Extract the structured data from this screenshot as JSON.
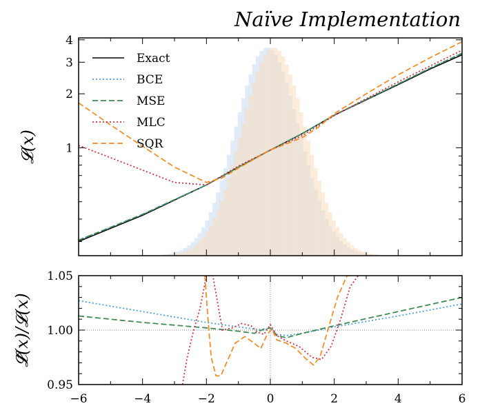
{
  "title": "Naïve Implementation",
  "chart_data": [
    {
      "type": "line",
      "ylabel": "𝓛(x)",
      "xlim": [
        -6,
        6
      ],
      "ylim": [
        0.25,
        4.1
      ],
      "yscale": "log",
      "yticks": [
        "1",
        "2",
        "3",
        "4"
      ],
      "legend": "top-left",
      "series": [
        {
          "name": "Exact",
          "color": "#000000",
          "style": "solid",
          "x": [
            -6,
            -4,
            -2,
            -1,
            0,
            1,
            2,
            3,
            4,
            5,
            6
          ],
          "y": [
            0.3,
            0.42,
            0.62,
            0.78,
            0.97,
            1.2,
            1.52,
            1.85,
            2.25,
            2.75,
            3.3
          ]
        },
        {
          "name": "BCE",
          "color": "#4a9ee0",
          "style": "dotted",
          "x": [
            -6,
            -4,
            -2,
            -1,
            0,
            1,
            2,
            3,
            4,
            5,
            6
          ],
          "y": [
            0.305,
            0.425,
            0.62,
            0.78,
            0.97,
            1.2,
            1.52,
            1.86,
            2.27,
            2.78,
            3.38
          ]
        },
        {
          "name": "MSE",
          "color": "#3f8a52",
          "style": "dashed",
          "x": [
            -6,
            -4,
            -2,
            -1,
            0,
            1,
            2,
            3,
            4,
            5,
            6
          ],
          "y": [
            0.305,
            0.425,
            0.62,
            0.78,
            0.97,
            1.2,
            1.52,
            1.86,
            2.27,
            2.78,
            3.36
          ]
        },
        {
          "name": "MLC",
          "color": "#d0313c",
          "style": "dotted",
          "x": [
            -6,
            -5,
            -4,
            -3,
            -2,
            -1,
            0,
            1,
            2,
            3,
            4,
            5,
            6
          ],
          "y": [
            1.03,
            0.88,
            0.75,
            0.64,
            0.62,
            0.79,
            0.97,
            1.17,
            1.51,
            1.88,
            2.33,
            2.86,
            3.5
          ]
        },
        {
          "name": "SQR",
          "color": "#f28e2b",
          "style": "dashed",
          "x": [
            -6,
            -5,
            -4,
            -3,
            -2,
            -1.5,
            -1,
            0,
            1,
            1.5,
            2,
            3,
            4,
            5,
            6
          ],
          "y": [
            1.78,
            1.34,
            1.02,
            0.78,
            0.64,
            0.68,
            0.77,
            0.97,
            1.14,
            1.3,
            1.55,
            2.0,
            2.55,
            3.18,
            3.9
          ]
        }
      ],
      "histograms": [
        {
          "color": "#c9ddf2",
          "mean": -0.1,
          "sigma": 1.0
        },
        {
          "color": "#f8dcc0",
          "mean": 0.1,
          "sigma": 1.0
        }
      ]
    },
    {
      "type": "line",
      "ylabel": "𝓛̂(x)/𝓛(x)",
      "xlabel": "",
      "xlim": [
        -6,
        6
      ],
      "ylim": [
        0.95,
        1.05
      ],
      "xticks": [
        "−6",
        "−4",
        "−2",
        "0",
        "2",
        "4",
        "6"
      ],
      "yticks": [
        "0.95",
        "1.00",
        "1.05"
      ],
      "reference_lines": {
        "y": 1.0,
        "x": 0
      },
      "series": [
        {
          "name": "BCE",
          "color": "#4a9ee0",
          "style": "dotted",
          "x": [
            -6,
            -4,
            -2,
            -1,
            -0.5,
            -0.2,
            0,
            0.2,
            0.5,
            1,
            2,
            4,
            6
          ],
          "y": [
            1.027,
            1.017,
            1.007,
            1.003,
            1.001,
            1.0,
            1.002,
            0.996,
            0.995,
            0.997,
            1.003,
            1.013,
            1.024
          ]
        },
        {
          "name": "MSE",
          "color": "#3f8a52",
          "style": "dashed",
          "x": [
            -6,
            -4,
            -2,
            -1,
            -0.5,
            -0.2,
            0,
            0.2,
            0.5,
            1,
            2,
            4,
            6
          ],
          "y": [
            1.013,
            1.007,
            1.002,
            0.999,
            0.997,
            1.001,
            1.002,
            0.995,
            0.993,
            0.997,
            1.004,
            1.017,
            1.03
          ]
        },
        {
          "name": "MLC",
          "color": "#d0313c",
          "style": "dotted",
          "x": [
            -2.75,
            -2.6,
            -2.4,
            -2.2,
            -2.0,
            -1.8,
            -1.5,
            -1.2,
            -0.9,
            -0.6,
            -0.4,
            -0.2,
            0,
            0.2,
            0.5,
            0.9,
            1.3,
            1.6,
            1.9,
            2.2,
            2.5,
            2.75
          ],
          "y": [
            0.95,
            0.975,
            1.0,
            1.02,
            1.05,
            1.05,
            1.0,
            1.002,
            1.006,
            1.004,
            0.998,
            0.996,
            1.005,
            0.995,
            0.99,
            0.985,
            0.975,
            0.973,
            0.985,
            1.01,
            1.04,
            1.05
          ]
        },
        {
          "name": "SQR",
          "color": "#f28e2b",
          "style": "dashed",
          "x": [
            -2.05,
            -1.95,
            -1.85,
            -1.7,
            -1.55,
            -1.4,
            -1.1,
            -0.8,
            -0.5,
            -0.3,
            -0.1,
            0.05,
            0.2,
            0.5,
            0.8,
            1.1,
            1.35,
            1.55,
            1.8,
            2.1,
            2.4,
            2.6
          ],
          "y": [
            1.05,
            1.01,
            0.975,
            0.958,
            0.958,
            0.968,
            0.988,
            0.994,
            0.988,
            0.983,
            0.996,
            1.001,
            0.991,
            0.988,
            0.983,
            0.974,
            0.968,
            0.975,
            1.0,
            1.03,
            1.05,
            1.05
          ]
        }
      ]
    }
  ]
}
